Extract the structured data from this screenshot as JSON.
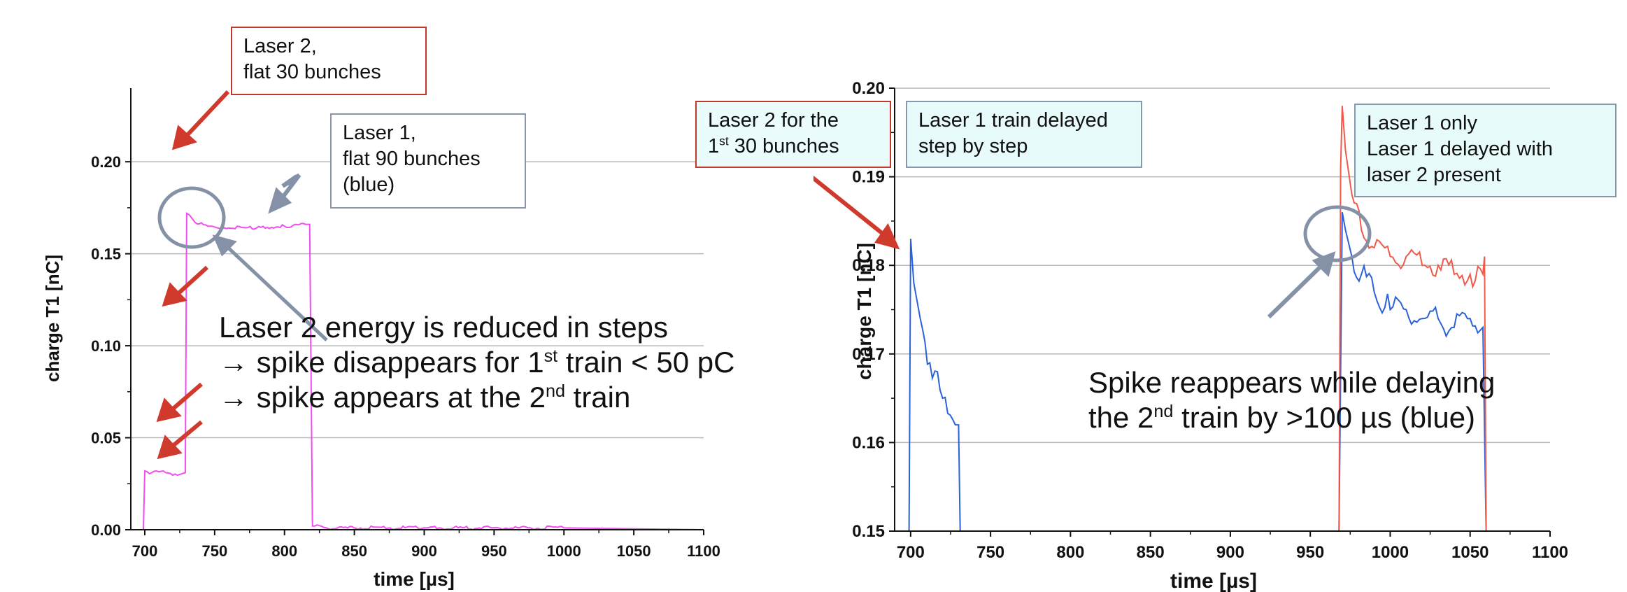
{
  "chart_data": [
    {
      "type": "line",
      "xlabel": "time [µs]",
      "ylabel": "charge T1 [nC]",
      "xlim": [
        690,
        1100
      ],
      "ylim": [
        0,
        0.24
      ],
      "xticks": [
        "700",
        "750",
        "800",
        "850",
        "900",
        "950",
        "1000",
        "1050",
        "1100"
      ],
      "yticks": [
        "0.00",
        "0.05",
        "0.10",
        "0.15",
        "0.20"
      ],
      "grid": "horizontal",
      "series": [
        {
          "color": "#f24cf2",
          "x": [
            699,
            700,
            705,
            715,
            725,
            729,
            730,
            732,
            736,
            745,
            760,
            780,
            800,
            815,
            818,
            820,
            830,
            900,
            1000,
            1100
          ],
          "y": [
            0,
            0.032,
            0.031,
            0.031,
            0.03,
            0.031,
            0.172,
            0.171,
            0.167,
            0.165,
            0.164,
            0.164,
            0.165,
            0.166,
            0.166,
            0.002,
            0.001,
            0.001,
            0.001,
            0.0
          ]
        }
      ]
    },
    {
      "type": "line",
      "xlabel": "time [µs]",
      "ylabel": "charge T1 [nC]",
      "xlim": [
        690,
        1100
      ],
      "ylim": [
        0.15,
        0.2
      ],
      "xticks": [
        "700",
        "750",
        "800",
        "850",
        "900",
        "950",
        "1000",
        "1050",
        "1100"
      ],
      "yticks": [
        "0.15",
        "0.16",
        "0.17",
        "0.18",
        "0.19",
        "0.20"
      ],
      "grid": "horizontal",
      "series": [
        {
          "color": "#2b62d9",
          "x": [
            699,
            700,
            702,
            706,
            712,
            720,
            728,
            730,
            731,
            968,
            970,
            972,
            976,
            982,
            990,
            1000,
            1010,
            1020,
            1030,
            1040,
            1050,
            1058,
            1060
          ],
          "y": [
            0.15,
            0.183,
            0.178,
            0.174,
            0.169,
            0.165,
            0.162,
            0.162,
            0.15,
            0.15,
            0.186,
            0.184,
            0.181,
            0.179,
            0.177,
            0.175,
            0.175,
            0.174,
            0.174,
            0.173,
            0.174,
            0.173,
            0.15
          ]
        },
        {
          "color": "#f05a4a",
          "x": [
            968,
            969,
            970,
            972,
            976,
            982,
            990,
            1000,
            1010,
            1020,
            1030,
            1040,
            1050,
            1058,
            1059,
            1060
          ],
          "y": [
            0.15,
            0.191,
            0.198,
            0.193,
            0.188,
            0.184,
            0.182,
            0.181,
            0.181,
            0.18,
            0.18,
            0.179,
            0.179,
            0.179,
            0.181,
            0.15
          ]
        }
      ]
    }
  ],
  "annotations": {
    "left": {
      "laser2_box": [
        "Laser 2,",
        "flat 30 bunches"
      ],
      "laser1_box": [
        "Laser 1,",
        "flat 90 bunches",
        "(blue)"
      ],
      "text_line1": "Laser 2 energy is reduced in steps",
      "text_line2_pre": "→ spike disappears for 1",
      "text_line2_sup": "st",
      "text_line2_post": " train < 50 pC",
      "text_line3_pre": "→ spike appears at the 2",
      "text_line3_sup": "nd",
      "text_line3_post": " train"
    },
    "right": {
      "laser2_box_line1": "Laser 2 for the",
      "laser2_box_line2_pre": "1",
      "laser2_box_line2_sup": "st",
      "laser2_box_line2_post": " 30 bunches",
      "laser1_delay_box": [
        "Laser 1 train delayed",
        "step by step"
      ],
      "laser1_only_box": [
        "Laser 1 only",
        "Laser 1 delayed with",
        "laser 2 present"
      ],
      "text_line1": "Spike reappears while delaying",
      "text_line2_pre": "the 2",
      "text_line2_sup": "nd",
      "text_line2_post": " train by >100 µs (blue)"
    }
  },
  "colors": {
    "arrow_red": "#d03a2c",
    "arrow_gray": "#8491a6",
    "grid": "#b8b8b8"
  }
}
